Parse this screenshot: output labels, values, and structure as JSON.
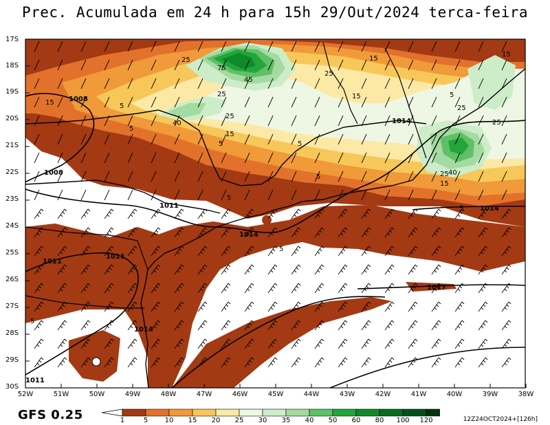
{
  "title": "Prec. Acumulada em 24 h para 15h 29/Out/2024 terca-feira",
  "model": "GFS 0.25",
  "run_info": "12Z24OCT2024+[126h]",
  "lat_labels": [
    "17S",
    "18S",
    "19S",
    "20S",
    "21S",
    "22S",
    "23S",
    "24S",
    "25S",
    "26S",
    "27S",
    "28S",
    "29S",
    "30S"
  ],
  "lon_labels": [
    "52W",
    "51W",
    "50W",
    "49W",
    "48W",
    "47W",
    "46W",
    "45W",
    "44W",
    "43W",
    "42W",
    "41W",
    "40W",
    "39W",
    "38W"
  ],
  "colorbar": {
    "labels": [
      "1",
      "5",
      "10",
      "15",
      "20",
      "25",
      "30",
      "35",
      "40",
      "50",
      "60",
      "80",
      "100",
      "120"
    ],
    "colors": [
      "#a33a13",
      "#e2722b",
      "#f09a3a",
      "#f7c75a",
      "#fde9a6",
      "#eef7e3",
      "#cdedc9",
      "#a4dba0",
      "#5fc067",
      "#22a63b",
      "#0f8a2b",
      "#086b21",
      "#04501a",
      "#023210"
    ]
  },
  "isobars": [
    "1008",
    "1008",
    "1011",
    "1011",
    "1011",
    "1011",
    "1014",
    "1014",
    "1014",
    "1014",
    "1017"
  ],
  "contour_labels": [
    "25",
    "75",
    "45",
    "25",
    "15",
    "25",
    "15",
    "5",
    "40",
    "25",
    "5",
    "15",
    "5",
    "5",
    "5",
    "5",
    "15",
    "25",
    "25",
    "25",
    "40",
    "15",
    "5",
    "5",
    "15",
    "5",
    "5"
  ]
}
